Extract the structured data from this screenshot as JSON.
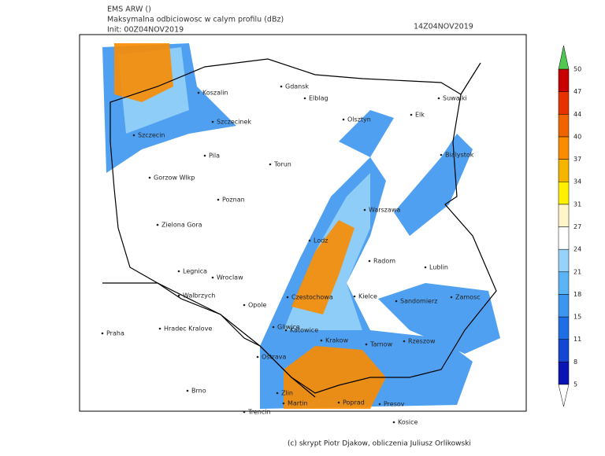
{
  "header": {
    "model": "EMS ARW ()",
    "field": "Maksymalna odbiciowosc w calym profilu (dBz)",
    "init": "Init: 00Z04NOV2019",
    "valid": "14Z04NOV2019"
  },
  "cities": [
    "Koszalin",
    "Gdansk",
    "Elblag",
    "Olsztyn",
    "Elk",
    "Suwalki",
    "Szczecin",
    "Szczecinek",
    "Pila",
    "Torun",
    "Bialystok",
    "Gorzow Wlkp",
    "Poznan",
    "Warszawa",
    "Zielona Gora",
    "Lodz",
    "Radom",
    "Lublin",
    "Legnica",
    "Wroclaw",
    "Walbrzych",
    "Opole",
    "Czestochowa",
    "Kielce",
    "Sandomierz",
    "Zamosc",
    "Praha",
    "Hradec Kralove",
    "Gliwice",
    "Katowice",
    "Krakow",
    "Tarnow",
    "Rzeszow",
    "Ostrava",
    "Brno",
    "Zlin",
    "Martin",
    "Poprad",
    "Presov",
    "Trencin",
    "Kosice"
  ],
  "scale": {
    "ticks": [
      5,
      8,
      11,
      15,
      18,
      21,
      24,
      27,
      31,
      34,
      37,
      40,
      44,
      47,
      50
    ],
    "colors": [
      "#0a14b4",
      "#1446d2",
      "#1e6ee6",
      "#3c96f0",
      "#5ab4f5",
      "#96d2fa",
      "#ffffff",
      "#fff5c8",
      "#fff000",
      "#f5b400",
      "#fa8c00",
      "#f06400",
      "#e63200",
      "#c80000"
    ],
    "over_color": "#50c850",
    "under_color": "#ffffff"
  },
  "footer": "(c) skrypt Piotr Djakow, obliczenia Juliusz Orlikowski"
}
